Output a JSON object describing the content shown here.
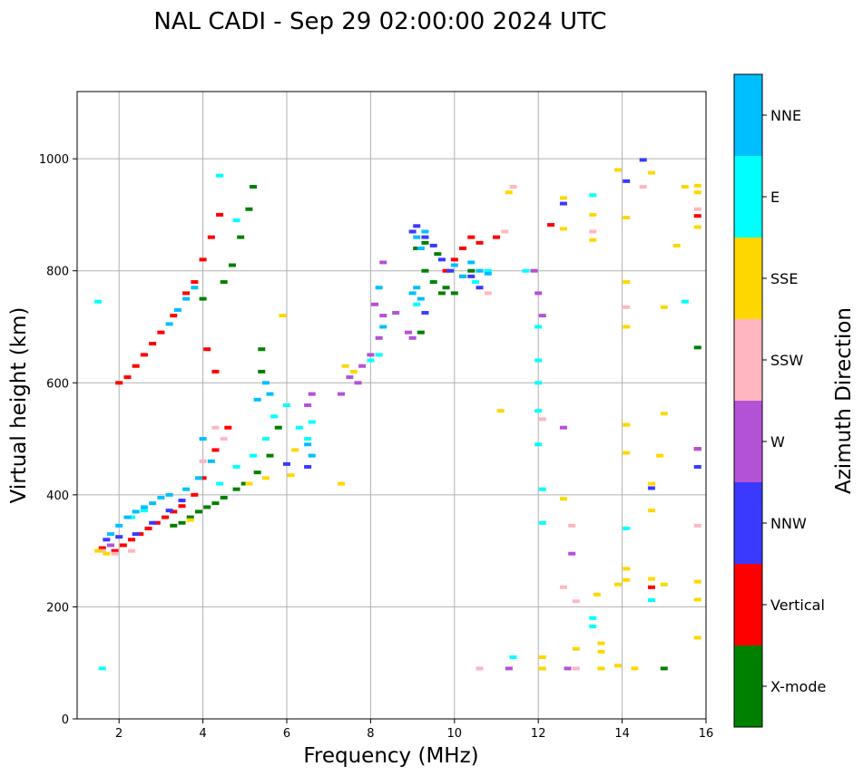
{
  "chart_data": {
    "type": "scatter",
    "title": "NAL CADI - Sep 29 02:00:00 2024 UTC",
    "xlabel": "Frequency (MHz)",
    "ylabel": "Virtual height (km)",
    "xlim": [
      1,
      16
    ],
    "ylim": [
      0,
      1120
    ],
    "xticks": [
      2,
      4,
      6,
      8,
      10,
      12,
      14,
      16
    ],
    "yticks": [
      0,
      200,
      400,
      600,
      800,
      1000
    ],
    "grid": true,
    "colorbar": {
      "label": "Azimuth Direction",
      "categories": [
        {
          "name": "X-mode",
          "color": "#008000"
        },
        {
          "name": "Vertical",
          "color": "#ff0000"
        },
        {
          "name": "NNW",
          "color": "#3a3aff"
        },
        {
          "name": "W",
          "color": "#b452d6"
        },
        {
          "name": "SSW",
          "color": "#ffb6c1"
        },
        {
          "name": "SSE",
          "color": "#ffd700"
        },
        {
          "name": "E",
          "color": "#00ffff"
        },
        {
          "name": "NNE",
          "color": "#00bfff"
        }
      ]
    },
    "series": [
      {
        "name": "X-mode",
        "points": [
          [
            3.3,
            345
          ],
          [
            3.5,
            350
          ],
          [
            3.7,
            360
          ],
          [
            3.9,
            370
          ],
          [
            4.1,
            378
          ],
          [
            4.3,
            385
          ],
          [
            4.5,
            395
          ],
          [
            4.8,
            410
          ],
          [
            5.0,
            420
          ],
          [
            5.3,
            440
          ],
          [
            5.6,
            470
          ],
          [
            5.8,
            520
          ],
          [
            4.7,
            810
          ],
          [
            4.5,
            780
          ],
          [
            4.0,
            750
          ],
          [
            4.9,
            860
          ],
          [
            5.1,
            910
          ],
          [
            5.2,
            950
          ],
          [
            5.4,
            620
          ],
          [
            5.4,
            660
          ],
          [
            9.3,
            800
          ],
          [
            9.5,
            780
          ],
          [
            9.7,
            760
          ],
          [
            9.8,
            770
          ],
          [
            10.0,
            760
          ],
          [
            10.2,
            790
          ],
          [
            10.4,
            800
          ],
          [
            9.1,
            840
          ],
          [
            9.3,
            850
          ],
          [
            9.6,
            830
          ],
          [
            9.2,
            690
          ],
          [
            15.0,
            90
          ],
          [
            15.8,
            663
          ]
        ]
      },
      {
        "name": "Vertical",
        "points": [
          [
            1.6,
            305
          ],
          [
            1.9,
            300
          ],
          [
            2.1,
            310
          ],
          [
            2.3,
            320
          ],
          [
            2.5,
            330
          ],
          [
            2.7,
            340
          ],
          [
            2.9,
            350
          ],
          [
            3.1,
            360
          ],
          [
            3.3,
            370
          ],
          [
            3.5,
            380
          ],
          [
            3.8,
            400
          ],
          [
            4.0,
            430
          ],
          [
            4.3,
            480
          ],
          [
            4.6,
            520
          ],
          [
            2.0,
            600
          ],
          [
            2.2,
            610
          ],
          [
            2.4,
            630
          ],
          [
            2.6,
            650
          ],
          [
            2.8,
            670
          ],
          [
            3.0,
            690
          ],
          [
            3.3,
            720
          ],
          [
            3.6,
            760
          ],
          [
            3.8,
            780
          ],
          [
            4.0,
            820
          ],
          [
            4.2,
            860
          ],
          [
            4.4,
            900
          ],
          [
            4.1,
            660
          ],
          [
            4.3,
            620
          ],
          [
            9.8,
            800
          ],
          [
            10.0,
            820
          ],
          [
            10.2,
            840
          ],
          [
            10.4,
            860
          ],
          [
            10.6,
            850
          ],
          [
            11.0,
            860
          ],
          [
            12.3,
            882
          ],
          [
            14.7,
            235
          ],
          [
            15.8,
            898
          ],
          [
            15.8,
            482
          ]
        ]
      },
      {
        "name": "NNW",
        "points": [
          [
            1.7,
            320
          ],
          [
            2.0,
            325
          ],
          [
            2.4,
            330
          ],
          [
            2.8,
            350
          ],
          [
            3.2,
            372
          ],
          [
            3.5,
            390
          ],
          [
            6.5,
            450
          ],
          [
            6.0,
            455
          ],
          [
            9.0,
            870
          ],
          [
            9.1,
            880
          ],
          [
            9.3,
            860
          ],
          [
            9.5,
            845
          ],
          [
            9.7,
            820
          ],
          [
            9.9,
            800
          ],
          [
            10.4,
            790
          ],
          [
            10.6,
            770
          ],
          [
            14.1,
            960
          ],
          [
            12.6,
            920
          ],
          [
            14.5,
            998
          ],
          [
            15.8,
            450
          ],
          [
            14.7,
            412
          ],
          [
            9.3,
            725
          ]
        ]
      },
      {
        "name": "W",
        "points": [
          [
            1.8,
            310
          ],
          [
            7.3,
            580
          ],
          [
            7.5,
            610
          ],
          [
            7.7,
            600
          ],
          [
            7.8,
            630
          ],
          [
            8.0,
            650
          ],
          [
            8.2,
            680
          ],
          [
            8.3,
            720
          ],
          [
            8.1,
            740
          ],
          [
            8.3,
            815
          ],
          [
            8.6,
            725
          ],
          [
            8.9,
            690
          ],
          [
            9.0,
            680
          ],
          [
            11.3,
            90
          ],
          [
            11.9,
            800
          ],
          [
            12.0,
            760
          ],
          [
            12.1,
            720
          ],
          [
            12.6,
            520
          ],
          [
            12.8,
            295
          ],
          [
            12.7,
            90
          ],
          [
            15.8,
            482
          ],
          [
            6.6,
            580
          ],
          [
            6.5,
            560
          ]
        ]
      },
      {
        "name": "SSW",
        "points": [
          [
            1.6,
            300
          ],
          [
            1.9,
            295
          ],
          [
            2.3,
            300
          ],
          [
            4.3,
            520
          ],
          [
            4.5,
            500
          ],
          [
            4.0,
            460
          ],
          [
            12.1,
            535
          ],
          [
            12.6,
            235
          ],
          [
            12.8,
            345
          ],
          [
            12.9,
            210
          ],
          [
            12.9,
            90
          ],
          [
            13.3,
            870
          ],
          [
            14.1,
            735
          ],
          [
            14.5,
            950
          ],
          [
            15.8,
            345
          ],
          [
            15.8,
            910
          ],
          [
            10.6,
            90
          ],
          [
            10.8,
            760
          ],
          [
            11.4,
            950
          ],
          [
            11.2,
            870
          ]
        ]
      },
      {
        "name": "SSE",
        "points": [
          [
            1.5,
            300
          ],
          [
            1.7,
            295
          ],
          [
            3.7,
            355
          ],
          [
            5.1,
            420
          ],
          [
            5.5,
            430
          ],
          [
            6.1,
            435
          ],
          [
            6.2,
            480
          ],
          [
            5.9,
            720
          ],
          [
            7.3,
            420
          ],
          [
            7.4,
            630
          ],
          [
            7.6,
            620
          ],
          [
            11.1,
            550
          ],
          [
            11.3,
            940
          ],
          [
            12.1,
            90
          ],
          [
            12.1,
            110
          ],
          [
            12.6,
            930
          ],
          [
            12.6,
            875
          ],
          [
            12.6,
            393
          ],
          [
            12.9,
            125
          ],
          [
            13.3,
            900
          ],
          [
            13.3,
            855
          ],
          [
            13.5,
            135
          ],
          [
            13.5,
            120
          ],
          [
            13.5,
            90
          ],
          [
            13.4,
            222
          ],
          [
            13.9,
            240
          ],
          [
            14.1,
            268
          ],
          [
            14.1,
            248
          ],
          [
            14.1,
            700
          ],
          [
            14.1,
            780
          ],
          [
            14.1,
            895
          ],
          [
            14.1,
            475
          ],
          [
            14.1,
            525
          ],
          [
            14.7,
            250
          ],
          [
            14.7,
            975
          ],
          [
            14.7,
            372
          ],
          [
            14.7,
            420
          ],
          [
            14.9,
            470
          ],
          [
            15.0,
            545
          ],
          [
            15.0,
            735
          ],
          [
            15.0,
            240
          ],
          [
            15.3,
            845
          ],
          [
            15.5,
            950
          ],
          [
            15.8,
            952
          ],
          [
            15.8,
            940
          ],
          [
            15.8,
            878
          ],
          [
            15.8,
            245
          ],
          [
            15.8,
            213
          ],
          [
            15.8,
            145
          ],
          [
            14.3,
            90
          ],
          [
            13.9,
            95
          ],
          [
            13.9,
            980
          ]
        ]
      },
      {
        "name": "E",
        "points": [
          [
            1.5,
            745
          ],
          [
            1.6,
            90
          ],
          [
            2.3,
            360
          ],
          [
            2.6,
            372
          ],
          [
            4.4,
            420
          ],
          [
            4.8,
            450
          ],
          [
            5.2,
            470
          ],
          [
            5.5,
            500
          ],
          [
            5.7,
            540
          ],
          [
            6.0,
            560
          ],
          [
            6.3,
            520
          ],
          [
            6.5,
            500
          ],
          [
            6.6,
            530
          ],
          [
            8.0,
            640
          ],
          [
            8.2,
            650
          ],
          [
            4.4,
            970
          ],
          [
            4.8,
            890
          ],
          [
            9.1,
            740
          ],
          [
            10.5,
            780
          ],
          [
            10.8,
            800
          ],
          [
            12.0,
            700
          ],
          [
            12.0,
            640
          ],
          [
            12.0,
            600
          ],
          [
            12.0,
            550
          ],
          [
            12.0,
            490
          ],
          [
            12.1,
            410
          ],
          [
            12.1,
            350
          ],
          [
            11.4,
            110
          ],
          [
            13.3,
            180
          ],
          [
            13.3,
            165
          ],
          [
            14.1,
            340
          ],
          [
            14.7,
            212
          ],
          [
            15.5,
            745
          ],
          [
            13.3,
            935
          ],
          [
            11.7,
            800
          ]
        ]
      },
      {
        "name": "NNE",
        "points": [
          [
            1.8,
            330
          ],
          [
            2.0,
            345
          ],
          [
            2.2,
            360
          ],
          [
            2.4,
            370
          ],
          [
            2.6,
            378
          ],
          [
            2.8,
            385
          ],
          [
            3.0,
            395
          ],
          [
            3.2,
            400
          ],
          [
            3.6,
            410
          ],
          [
            3.9,
            430
          ],
          [
            4.2,
            460
          ],
          [
            4.0,
            500
          ],
          [
            3.2,
            705
          ],
          [
            3.4,
            730
          ],
          [
            3.6,
            750
          ],
          [
            3.8,
            770
          ],
          [
            5.3,
            570
          ],
          [
            5.5,
            600
          ],
          [
            5.6,
            580
          ],
          [
            6.6,
            470
          ],
          [
            6.5,
            490
          ],
          [
            9.0,
            760
          ],
          [
            9.1,
            770
          ],
          [
            9.2,
            750
          ],
          [
            9.1,
            860
          ],
          [
            9.2,
            840
          ],
          [
            9.3,
            870
          ],
          [
            10.0,
            810
          ],
          [
            10.2,
            790
          ],
          [
            10.4,
            815
          ],
          [
            10.6,
            800
          ],
          [
            10.8,
            795
          ],
          [
            8.3,
            700
          ],
          [
            8.2,
            770
          ]
        ]
      }
    ]
  }
}
